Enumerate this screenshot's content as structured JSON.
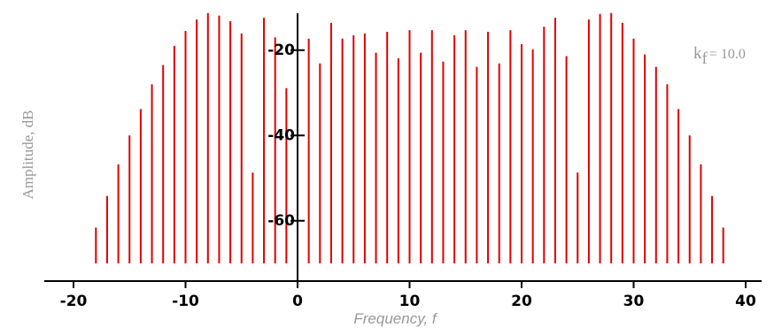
{
  "chart_data": {
    "type": "stem",
    "x_label": "Frequency, f",
    "y_label": "Amplitude, dB",
    "annotation": {
      "base": "k",
      "sub": "f",
      "rest": "= 10.0"
    },
    "color": "#e00000",
    "x": [
      -18,
      -17,
      -16,
      -15,
      -14,
      -13,
      -12,
      -11,
      -10,
      -9,
      -8,
      -7,
      -6,
      -5,
      -4,
      -3,
      -2,
      -1,
      0,
      1,
      2,
      3,
      4,
      5,
      6,
      7,
      8,
      9,
      10,
      11,
      12,
      13,
      14,
      15,
      16,
      17,
      18,
      19,
      20,
      21,
      22,
      23,
      24,
      25,
      26,
      27,
      28,
      29,
      30,
      31,
      32,
      33,
      34,
      35,
      36,
      37,
      38
    ],
    "values": [
      -61.6,
      -54.2,
      -46.8,
      -40,
      -33.8,
      -28,
      -23.5,
      -19,
      -15.5,
      -12.8,
      -11.3,
      -11.9,
      -13.2,
      -16.1,
      -48.7,
      -12.4,
      -17,
      -28.9,
      -12,
      -17.3,
      -23.1,
      -13.6,
      -17.3,
      -16.5,
      -16.1,
      -20.6,
      -15.7,
      -21.9,
      -15.3,
      -20.6,
      -15.3,
      -22.7,
      -16.5,
      -15.3,
      -23.9,
      -15.7,
      -23.1,
      -15.3,
      -18.6,
      -19.8,
      -14.5,
      -12.4,
      -21.4,
      -48.7,
      -12.8,
      -11.5,
      -11.3,
      -13.6,
      -17.3,
      -21,
      -23.9,
      -28,
      -33.8,
      -40,
      -46.8,
      -54.2,
      -61.6
    ],
    "xlim": [
      -20,
      40
    ],
    "xticks": [
      -20,
      -10,
      0,
      10,
      20,
      30,
      40
    ],
    "ylim": [
      -70,
      -10
    ],
    "yticks": [
      -20,
      -40,
      -60
    ]
  }
}
